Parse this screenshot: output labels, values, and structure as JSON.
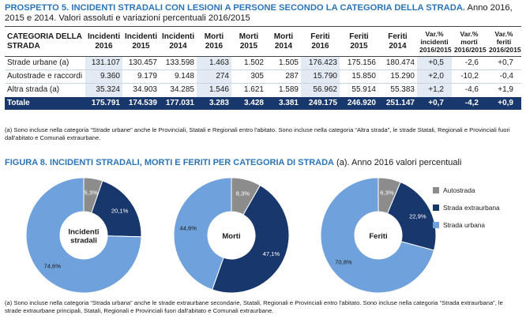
{
  "table_title": {
    "lead": "PROSPETTO 5. INCIDENTI STRADALI CON LESIONI A PERSONE SECONDO LA CATEGORIA DELLA STRADA.",
    "rest": " Anno 2016, 2015 e 2014. Valori assoluti e variazioni percentuali 2016/2015"
  },
  "table": {
    "category_header": "CATEGORIA DELLA STRADA",
    "columns": [
      {
        "l1": "Incidenti",
        "l2": "2016"
      },
      {
        "l1": "Incidenti",
        "l2": "2015"
      },
      {
        "l1": "Incidenti",
        "l2": "2014"
      },
      {
        "l1": "Morti",
        "l2": "2016"
      },
      {
        "l1": "Morti",
        "l2": "2015"
      },
      {
        "l1": "Morti",
        "l2": "2014"
      },
      {
        "l1": "Feriti",
        "l2": "2016"
      },
      {
        "l1": "Feriti",
        "l2": "2015"
      },
      {
        "l1": "Feriti",
        "l2": "2014"
      },
      {
        "l1": "Var.%",
        "l2": "incidenti",
        "l3": "2016/2015"
      },
      {
        "l1": "Var.%",
        "l2": "morti",
        "l3": "2016/2015"
      },
      {
        "l1": "Var.%",
        "l2": "feriti",
        "l3": "2016/2015"
      }
    ],
    "rows": [
      {
        "category": "Strade urbane (a)",
        "values": [
          "131.107",
          "130.457",
          "133.598",
          "1.463",
          "1.502",
          "1.505",
          "176.423",
          "175.156",
          "180.474",
          "+0,5",
          "-2,6",
          "+0,7"
        ]
      },
      {
        "category": "Autostrade e raccordi",
        "values": [
          "9.360",
          "9.179",
          "9.148",
          "274",
          "305",
          "287",
          "15.790",
          "15.850",
          "15.290",
          "+2,0",
          "-10,2",
          "-0,4"
        ]
      },
      {
        "category": "Altra strada (a)",
        "values": [
          "35.324",
          "34.903",
          "34.285",
          "1.546",
          "1.621",
          "1.589",
          "56.962",
          "55.914",
          "55.383",
          "+1,2",
          "-4,6",
          "+1,9"
        ]
      }
    ],
    "total": {
      "category": "Totale",
      "values": [
        "175.791",
        "174.539",
        "177.031",
        "3.283",
        "3.428",
        "3.381",
        "249.175",
        "246.920",
        "251.147",
        "+0,7",
        "-4,2",
        "+0,9"
      ]
    }
  },
  "table_note": "(a) Sono incluse nella categoria “Strade urbane” anche le Provinciali, Statali e Regionali entro l'abitato. Sono incluse nella categoria “Altra strada”, le strade Statali, Regionali e Provinciali fuori dall'abitato e Comunali extraurbane.",
  "figure_title": {
    "lead": "FIGURA 8. INCIDENTI STRADALI, MORTI E FERITI PER CATEGORIA DI STRADA",
    "rest": " (a). Anno 2016 valori percentuali"
  },
  "colors": {
    "autostrada": "#8c8c8c",
    "extraurbana": "#18386d",
    "urbana": "#6fa1dc",
    "header_accent": "#2b74b8",
    "total_row": "#18386d",
    "shade": "#e3eaf3"
  },
  "chart_data": {
    "type": "pie",
    "variant": "donut",
    "legend_position": "right",
    "legend": [
      {
        "key": "autostrada",
        "label": "Autostrada"
      },
      {
        "key": "extraurbana",
        "label": "Strada extraurbana"
      },
      {
        "key": "urbana",
        "label": "Strada urbana"
      }
    ],
    "charts": [
      {
        "center_label_lines": [
          "Incidenti",
          "stradali"
        ],
        "slices": {
          "autostrada": 5.3,
          "extraurbana": 20.1,
          "urbana": 74.6
        },
        "labels": {
          "autostrada": "5,3%",
          "extraurbana": "20,1%",
          "urbana": "74,6%"
        }
      },
      {
        "center_label_lines": [
          "Morti"
        ],
        "slices": {
          "autostrada": 8.3,
          "extraurbana": 47.1,
          "urbana": 44.6
        },
        "labels": {
          "autostrada": "8,3%",
          "extraurbana": "47,1%",
          "urbana": "44,6%"
        }
      },
      {
        "center_label_lines": [
          "Feriti"
        ],
        "slices": {
          "autostrada": 6.3,
          "extraurbana": 22.9,
          "urbana": 70.8
        },
        "labels": {
          "autostrada": "6,3%",
          "extraurbana": "22,9%",
          "urbana": "70,8%"
        }
      }
    ]
  },
  "figure_note": "(a) Sono incluse nella categoria “Strada urbana” anche le strade extraurbane secondarie, Statali, Regionali e Provinciali entro l'abitato. Sono incluse nella categoria “Strada extraurbana”, le strade extraurbane principali, Statali, Regionali e Provinciali fuori dall'abitato e Comunali extraurbane."
}
